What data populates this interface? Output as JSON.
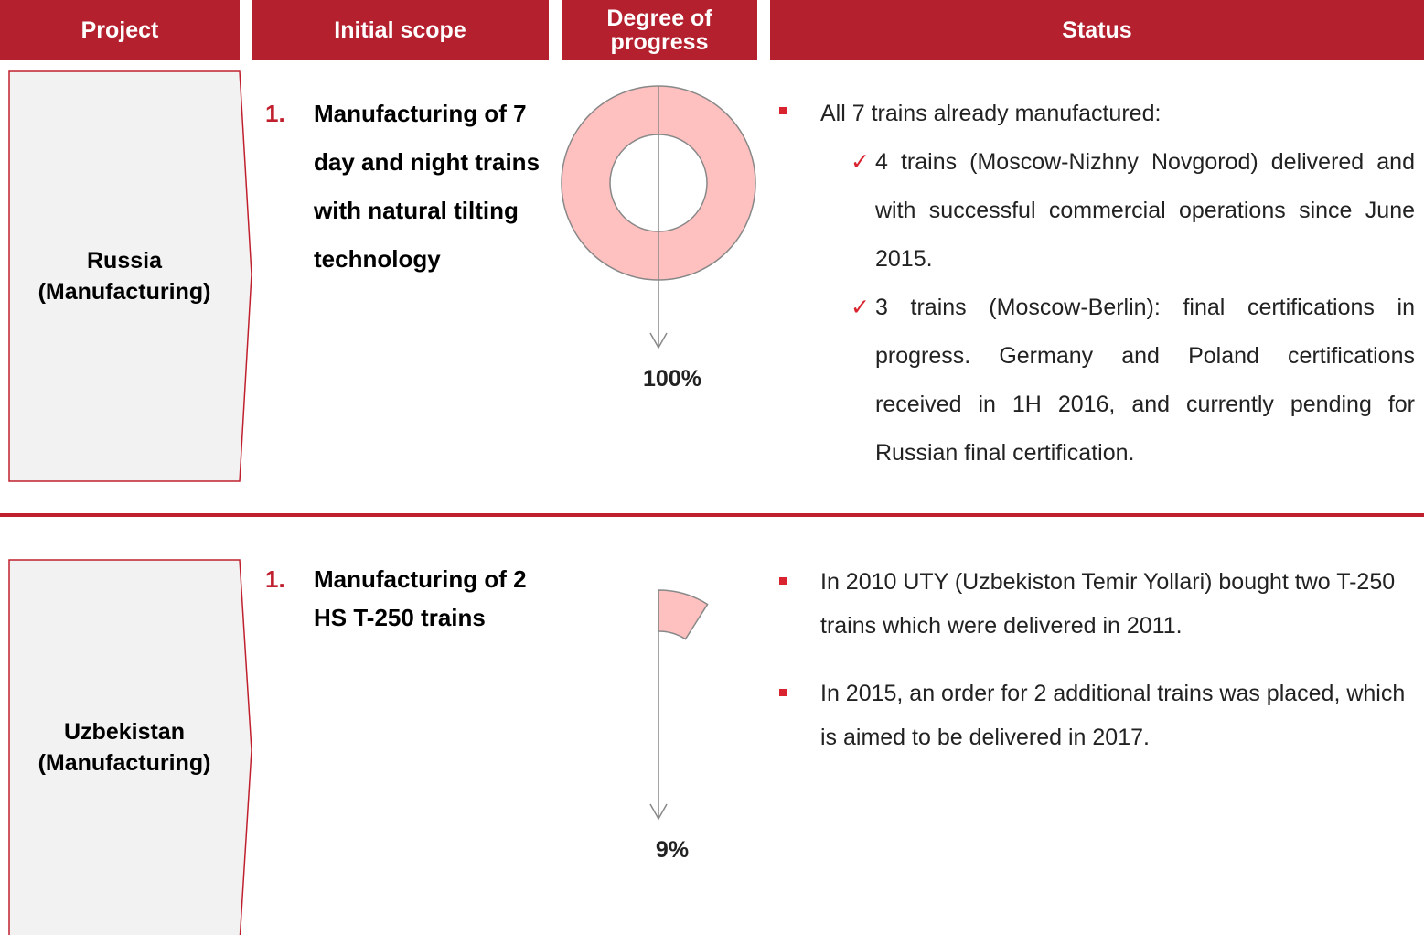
{
  "header": {
    "project": "Project",
    "scope": "Initial scope",
    "progress": "Degree of progress",
    "status": "Status"
  },
  "rows": [
    {
      "project": "Russia (Manufacturing)",
      "scope": [
        {
          "number": "1.",
          "text": "Manufacturing of 7 day and night trains with natural tilting technology"
        }
      ],
      "progress": 100,
      "progress_label": "100%",
      "status": [
        {
          "text": "All 7 trains already manufactured:",
          "items": [
            "4 trains (Moscow-Nizhny Novgorod) delivered and with successful commercial operations since June 2015.",
            "3 trains (Moscow-Berlin): final certifications in progress. Germany and Poland certifications received in 1H 2016, and currently pending for Russian final certification."
          ]
        }
      ]
    },
    {
      "project": "Uzbekistan (Manufacturing)",
      "scope": [
        {
          "number": "1.",
          "text": "Manufacturing of 2 HS T-250 trains"
        }
      ],
      "progress": 9,
      "progress_label": "9%",
      "status": [
        {
          "text": "In 2010 UTY (Uzbekiston Temir Yollari) bought two T-250 trains which were delivered in 2011."
        },
        {
          "text": "In 2015, an order for 2 additional trains was placed, which is aimed to be delivered in 2017."
        }
      ]
    }
  ]
}
